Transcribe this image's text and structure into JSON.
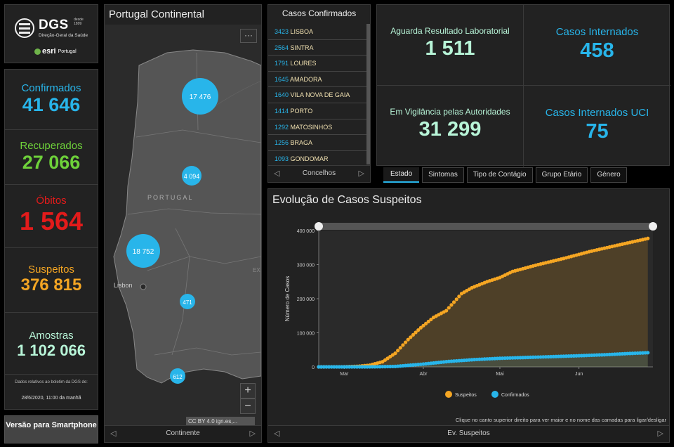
{
  "logo": {
    "title": "DGS",
    "desde": "desde 1899",
    "subtitle": "Direção-Geral da Saúde",
    "esri": "esri",
    "esri_country": "Portugal"
  },
  "stats": {
    "confirmados": {
      "label": "Confirmados",
      "value": "41 646"
    },
    "recuperados": {
      "label": "Recuperados",
      "value": "27 066"
    },
    "obitos": {
      "label": "Óbitos",
      "value": "1 564"
    },
    "suspeitos": {
      "label": "Suspeitos",
      "value": "376 815"
    },
    "amostras": {
      "label": "Amostras",
      "value": "1 102 066"
    },
    "note": "Dados relativos ao boletim da DGS de:",
    "updated": "28/6/2020, 11:00 da manhã"
  },
  "smartphone_button": "Versão para Smartphone",
  "map": {
    "title": "Portugal Continental",
    "region_label": "PORTUGAL",
    "spain_label": "EX",
    "city_label": "Lisbon",
    "clusters": [
      {
        "label": "17 476"
      },
      {
        "label": "4 094"
      },
      {
        "label": "18 752"
      },
      {
        "label": "471"
      },
      {
        "label": "612"
      }
    ],
    "attribution": "CC BY 4.0 ign.es,...",
    "zoom_in": "+",
    "zoom_out": "−",
    "more": "···",
    "nav_label": "Continente"
  },
  "list": {
    "title": "Casos Confirmados",
    "rows": [
      {
        "num": "3423",
        "name": "LISBOA"
      },
      {
        "num": "2564",
        "name": "SINTRA"
      },
      {
        "num": "1791",
        "name": "LOURES"
      },
      {
        "num": "1645",
        "name": "AMADORA"
      },
      {
        "num": "1640",
        "name": "VILA NOVA DE GAIA"
      },
      {
        "num": "1414",
        "name": "PORTO"
      },
      {
        "num": "1292",
        "name": "MATOSINHOS"
      },
      {
        "num": "1256",
        "name": "BRAGA"
      },
      {
        "num": "1093",
        "name": "GONDOMAR"
      }
    ],
    "nav_label": "Concelhos"
  },
  "indicators": {
    "aguarda": {
      "label": "Aguarda Resultado Laboratorial",
      "value": "1 511"
    },
    "internados": {
      "label": "Casos Internados",
      "value": "458"
    },
    "vigilancia": {
      "label": "Em Vigilância pelas Autoridades",
      "value": "31 299"
    },
    "uci": {
      "label": "Casos Internados UCI",
      "value": "75"
    }
  },
  "tabs": [
    "Estado",
    "Sintomas",
    "Tipo de Contágio",
    "Grupo Etário",
    "Género"
  ],
  "chart": {
    "title": "Evolução de Casos Suspeitos",
    "hint": "Clique no canto superior direito para ver maior e no nome das camadas para ligar/desligar",
    "nav_label": "Ev. Suspeitos"
  },
  "colors": {
    "suspeitos": "#f5a623",
    "confirmados": "#28b5ea",
    "recuperados": "#6ed13a",
    "obitos": "#e31b1b",
    "amostras": "#b8f5d8"
  },
  "chart_data": {
    "type": "scatter",
    "title": "",
    "xlabel": "",
    "ylabel": "Número de Casos",
    "x_ticks": [
      "Mar",
      "Abr",
      "Mai",
      "Jun"
    ],
    "y_ticks": [
      "0",
      "100 000",
      "200 000",
      "300 000",
      "400 000"
    ],
    "ylim": [
      0,
      400000
    ],
    "legend": "bottom-center",
    "series": [
      {
        "name": "Suspeitos",
        "points": [
          [
            "2020-02-20",
            0
          ],
          [
            "2020-03-01",
            200
          ],
          [
            "2020-03-06",
            1500
          ],
          [
            "2020-03-11",
            5000
          ],
          [
            "2020-03-16",
            15000
          ],
          [
            "2020-03-21",
            40000
          ],
          [
            "2020-03-26",
            80000
          ],
          [
            "2020-03-31",
            115000
          ],
          [
            "2020-04-05",
            145000
          ],
          [
            "2020-04-10",
            165000
          ],
          [
            "2020-04-13",
            190000
          ],
          [
            "2020-04-16",
            215000
          ],
          [
            "2020-04-20",
            232000
          ],
          [
            "2020-04-26",
            250000
          ],
          [
            "2020-05-01",
            262000
          ],
          [
            "2020-05-06",
            280000
          ],
          [
            "2020-05-16",
            300000
          ],
          [
            "2020-05-26",
            318000
          ],
          [
            "2020-06-05",
            338000
          ],
          [
            "2020-06-15",
            355000
          ],
          [
            "2020-06-28",
            376815
          ]
        ]
      },
      {
        "name": "Confirmados",
        "points": [
          [
            "2020-02-20",
            0
          ],
          [
            "2020-03-02",
            2
          ],
          [
            "2020-03-11",
            59
          ],
          [
            "2020-03-21",
            1280
          ],
          [
            "2020-04-01",
            8251
          ],
          [
            "2020-04-11",
            15987
          ],
          [
            "2020-04-21",
            21379
          ],
          [
            "2020-05-01",
            25190
          ],
          [
            "2020-05-11",
            27581
          ],
          [
            "2020-05-21",
            29912
          ],
          [
            "2020-06-01",
            32700
          ],
          [
            "2020-06-11",
            35600
          ],
          [
            "2020-06-21",
            39392
          ],
          [
            "2020-06-28",
            41646
          ]
        ]
      }
    ]
  }
}
